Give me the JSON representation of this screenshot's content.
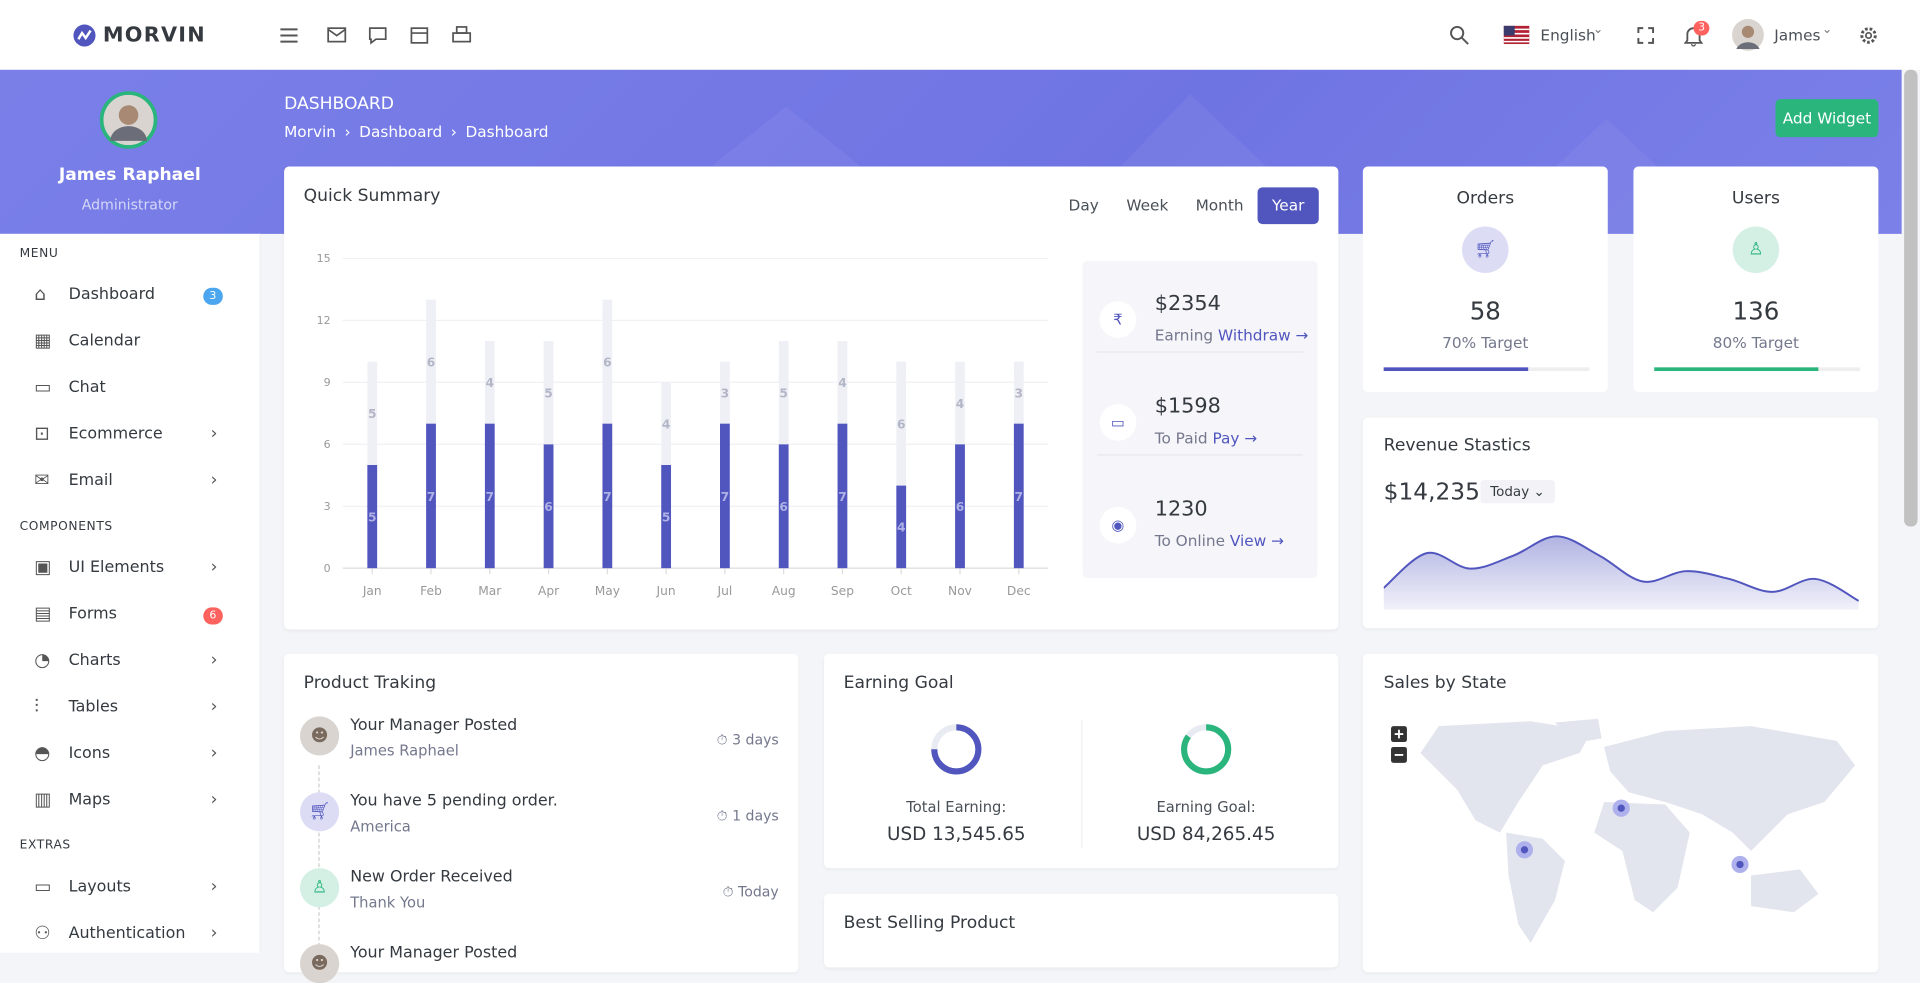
{
  "brand": "MORVIN",
  "header": {
    "language": "English",
    "user": "James",
    "notifications": "3"
  },
  "profile": {
    "name": "James Raphael",
    "role": "Administrator"
  },
  "menu": [
    {
      "title": "MENU",
      "items": [
        {
          "label": "Dashboard",
          "badge": "3",
          "badge_color": "#4ba6ef"
        },
        {
          "label": "Calendar"
        },
        {
          "label": "Chat"
        },
        {
          "label": "Ecommerce",
          "arrow": true
        },
        {
          "label": "Email",
          "arrow": true
        }
      ]
    },
    {
      "title": "COMPONENTS",
      "items": [
        {
          "label": "UI Elements",
          "arrow": true
        },
        {
          "label": "Forms",
          "badge": "6",
          "badge_color": "#fd625e"
        },
        {
          "label": "Charts",
          "arrow": true
        },
        {
          "label": "Tables",
          "arrow": true
        },
        {
          "label": "Icons",
          "arrow": true
        },
        {
          "label": "Maps",
          "arrow": true
        }
      ]
    },
    {
      "title": "EXTRAS",
      "items": [
        {
          "label": "Layouts",
          "arrow": true
        },
        {
          "label": "Authentication",
          "arrow": true
        }
      ]
    }
  ],
  "page": {
    "title": "DASHBOARD",
    "breadcrumb": [
      "Morvin",
      "Dashboard",
      "Dashboard"
    ],
    "action": "Add Widget"
  },
  "summary_tabs": [
    "Day",
    "Week",
    "Month",
    "Year"
  ],
  "summary_stats": [
    {
      "icon": "₹",
      "value": "$2354",
      "label": "Earning",
      "link": "Withdraw"
    },
    {
      "icon": "▭",
      "value": "$1598",
      "label": "To Paid",
      "link": "Pay"
    },
    {
      "icon": "◉",
      "value": "1230",
      "label": "To Online",
      "link": "View"
    }
  ],
  "counters": [
    {
      "title": "Orders",
      "value": "58",
      "target": "70% Target",
      "progress": 70,
      "color": "#5156be",
      "tint": "#dcddf5"
    },
    {
      "title": "Users",
      "value": "136",
      "target": "80% Target",
      "progress": 80,
      "color": "#2ab57d",
      "tint": "#d4f0e5"
    }
  ],
  "revenue": {
    "title": "Revenue Stastics",
    "amount": "$14,235",
    "period": "Today"
  },
  "tracking": {
    "title": "Product Traking",
    "items": [
      {
        "icon": "avatar",
        "title": "Your Manager Posted",
        "subtitle": "James Raphael",
        "time": "3 days"
      },
      {
        "icon": "cart",
        "title": "You have 5 pending order.",
        "subtitle": "America",
        "time": "1 days"
      },
      {
        "icon": "user",
        "title": "New Order Received",
        "subtitle": "Thank You",
        "time": "Today"
      },
      {
        "icon": "avatar",
        "title": "Your Manager Posted",
        "subtitle": "",
        "time": ""
      }
    ]
  },
  "earning_goal": {
    "title": "Earning Goal",
    "items": [
      {
        "label": "Total Earning:",
        "value": "USD 13,545.65"
      },
      {
        "label": "Earning Goal:",
        "value": "USD 84,265.45"
      }
    ]
  },
  "best_selling": {
    "title": "Best Selling Product"
  },
  "sales_map": {
    "title": "Sales by State"
  },
  "chart_data": [
    {
      "type": "bar",
      "stacked": true,
      "title": "Quick Summary",
      "categories": [
        "Jan",
        "Feb",
        "Mar",
        "Apr",
        "May",
        "Jun",
        "Jul",
        "Aug",
        "Sep",
        "Oct",
        "Nov",
        "Dec"
      ],
      "series": [
        {
          "color": "#5156be",
          "values": [
            5,
            7,
            7,
            6,
            7,
            5,
            7,
            6,
            7,
            4,
            6,
            7
          ]
        },
        {
          "color": "#eff0f6",
          "values": [
            5,
            6,
            4,
            5,
            6,
            4,
            3,
            5,
            4,
            6,
            4,
            3
          ]
        }
      ],
      "ylim": [
        0,
        15
      ],
      "yticks": [
        0,
        3,
        6,
        9,
        12,
        15
      ],
      "grid": true
    },
    {
      "type": "area",
      "color": "#5156be",
      "values": [
        15,
        42,
        30,
        40,
        55,
        40,
        20,
        28,
        22,
        12,
        22,
        5
      ]
    },
    {
      "type": "donut",
      "values": [
        75,
        85
      ],
      "colors": [
        "#5156be",
        "#2ab57d"
      ]
    }
  ]
}
